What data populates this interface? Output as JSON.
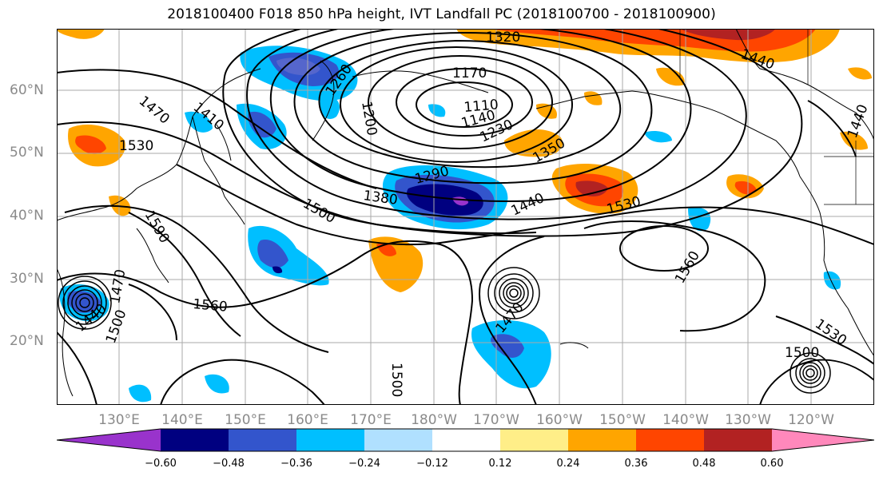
{
  "title": "2018100400 F018 850 hPa height, IVT Landfall PC (2018100700 - 2018100900)",
  "lat_labels": [
    "60°N",
    "50°N",
    "40°N",
    "30°N",
    "20°N"
  ],
  "lon_labels": [
    "130°E",
    "140°E",
    "150°E",
    "160°E",
    "170°E",
    "180°W",
    "170°W",
    "160°W",
    "150°W",
    "140°W",
    "130°W",
    "120°W"
  ],
  "colorbar": {
    "colors": [
      "#9933cc",
      "#000080",
      "#3355cc",
      "#00bfff",
      "#b0e0ff",
      "#ffffff",
      "#ffee88",
      "#ffa500",
      "#ff4500",
      "#b22222",
      "#ff88bb"
    ],
    "tick_labels": [
      "−0.60",
      "−0.48",
      "−0.36",
      "−0.24",
      "−0.12",
      "0.12",
      "0.24",
      "0.36",
      "0.48",
      "0.60"
    ]
  },
  "contour_labels": [
    "1320",
    "1440",
    "1170",
    "1260",
    "1110",
    "1140",
    "1200",
    "1470",
    "1410",
    "1230",
    "1530",
    "1350",
    "1290",
    "1380",
    "1440",
    "1530",
    "1500",
    "1590",
    "1560",
    "1560",
    "1470",
    "1440",
    "1500",
    "1500",
    "1530",
    "1500",
    "1470",
    "1440"
  ]
}
